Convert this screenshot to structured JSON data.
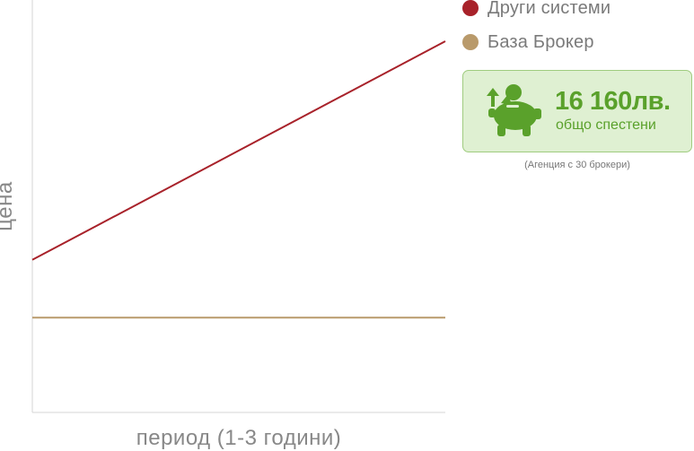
{
  "chart_data": {
    "type": "line",
    "xlabel": "период (1-3 години)",
    "ylabel": "цена",
    "x": [
      0,
      1
    ],
    "xlim": [
      0,
      1
    ],
    "ylim": [
      0,
      100
    ],
    "series": [
      {
        "name": "Други системи",
        "color": "#a8222a",
        "values": [
          37,
          90
        ]
      },
      {
        "name": "База Брокер",
        "color": "#b99a6b",
        "values": [
          23,
          23
        ]
      }
    ],
    "legend_position": "top-right",
    "grid": false
  },
  "savings": {
    "amount": "16 160лв.",
    "caption": "общо спестени",
    "note": "(Агенция с 30 брокери)",
    "icon": "piggy-bank-icon",
    "accent_color": "#5aa12b"
  }
}
